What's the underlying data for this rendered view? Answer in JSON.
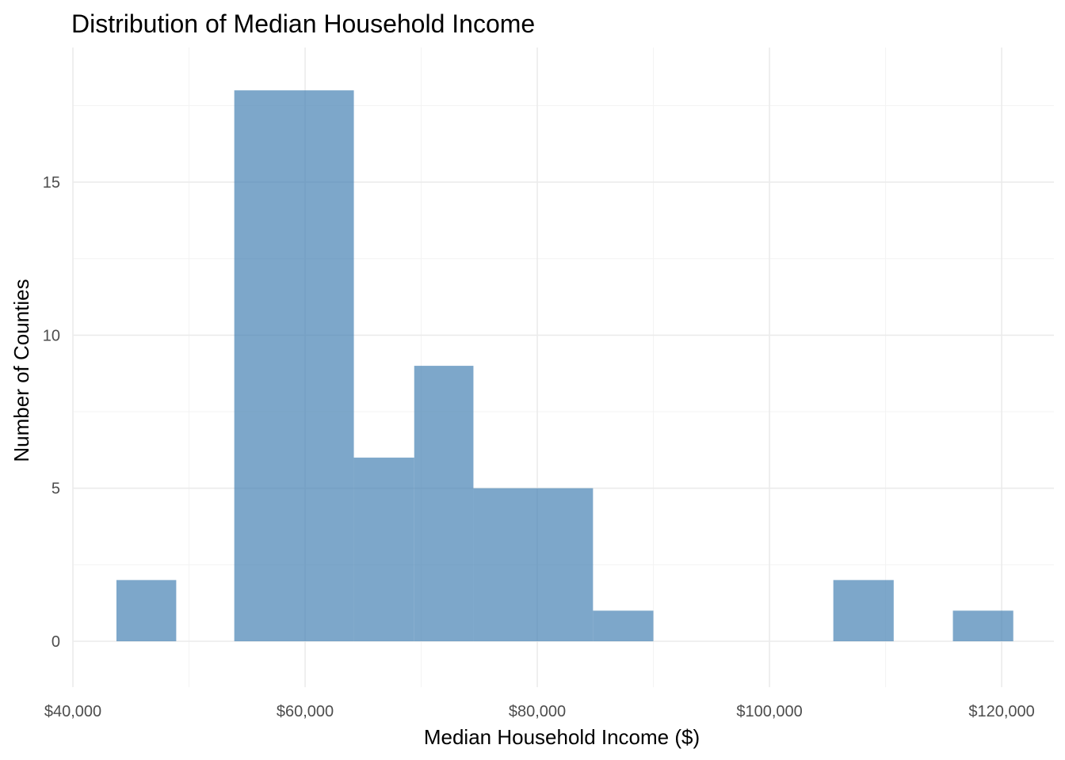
{
  "chart_data": {
    "type": "bar",
    "title": "Distribution of Median Household Income",
    "xlabel": "Median Household Income ($)",
    "ylabel": "Number of Counties",
    "bins": [
      {
        "x0": 43750,
        "x1": 48900,
        "count": 2
      },
      {
        "x0": 53900,
        "x1": 64200,
        "count": 18
      },
      {
        "x0": 64200,
        "x1": 69400,
        "count": 6
      },
      {
        "x0": 69400,
        "x1": 74500,
        "count": 9
      },
      {
        "x0": 74500,
        "x1": 84800,
        "count": 5
      },
      {
        "x0": 84800,
        "x1": 90000,
        "count": 1
      },
      {
        "x0": 105500,
        "x1": 110700,
        "count": 2
      },
      {
        "x0": 115800,
        "x1": 121000,
        "count": 1
      }
    ],
    "xlim": [
      40000,
      124500
    ],
    "ylim": [
      -1.5,
      19.4
    ],
    "x_ticks": [
      40000,
      60000,
      80000,
      100000,
      120000
    ],
    "x_tick_labels": [
      "$40,000",
      "$60,000",
      "$80,000",
      "$100,000",
      "$120,000"
    ],
    "y_ticks": [
      0,
      5,
      10,
      15
    ],
    "y_tick_labels": [
      "0",
      "5",
      "10",
      "15"
    ],
    "bar_color": "#4682b4",
    "bar_opacity": 0.7,
    "grid": true
  }
}
